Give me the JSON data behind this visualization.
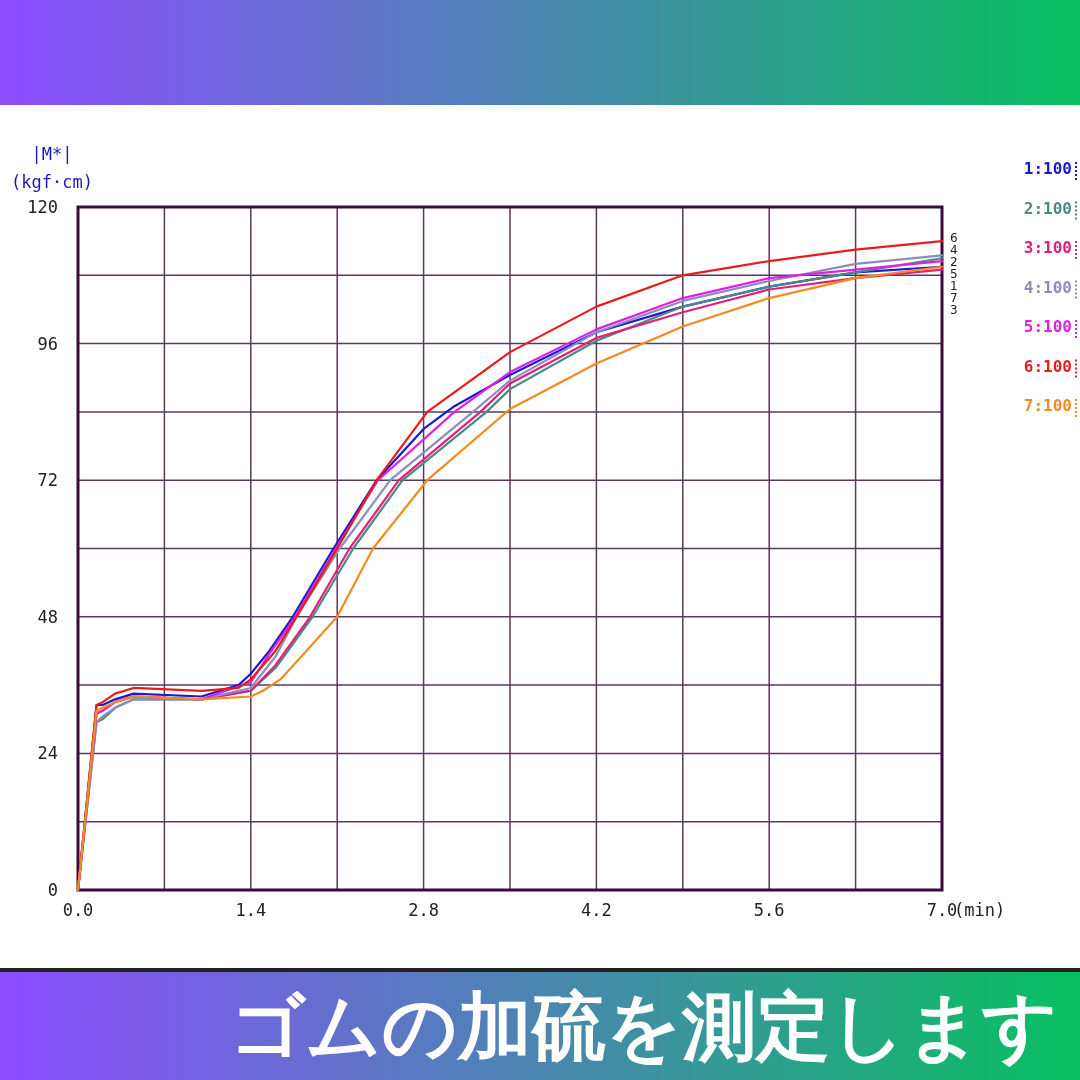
{
  "chart_data": {
    "type": "line",
    "title": "ゴムの加硫を測定します",
    "ylabel": "|M*|\n(kgf·cm)",
    "xlabel": "(min)",
    "xlim": [
      0,
      7
    ],
    "ylim": [
      0,
      120
    ],
    "xticks": [
      {
        "value": 0,
        "label": "0.0"
      },
      {
        "value": 0.7,
        "label": null
      },
      1.4,
      {
        "value": 2.1,
        "label": null
      },
      2.8,
      {
        "value": 3.5,
        "label": null
      },
      4.2,
      {
        "value": 4.9,
        "label": null
      },
      5.6,
      {
        "value": 6.3,
        "label": null
      },
      {
        "value": 7,
        "label": "7.0"
      }
    ],
    "yticks": [
      0,
      {
        "value": 12,
        "label": null
      },
      24,
      {
        "value": 36,
        "label": null
      },
      48,
      {
        "value": 60,
        "label": null
      },
      72,
      {
        "value": 84,
        "label": null
      },
      96,
      {
        "value": 108,
        "label": null
      },
      120
    ],
    "grid": true,
    "legend": "right",
    "marker": "none",
    "line_style": "solid",
    "series": [
      {
        "name": "1:100",
        "color": "#1a1ad0",
        "x": [
          0,
          0.15,
          0.2,
          0.3,
          0.45,
          1.0,
          1.3,
          1.4,
          1.55,
          1.74,
          2.07,
          2.42,
          2.8,
          3.05,
          3.5,
          4.2,
          4.9,
          5.6,
          6.3,
          7.0
        ],
        "values": [
          0,
          32.5,
          32.5,
          33.5,
          34.5,
          34,
          36,
          38,
          42,
          48,
          60,
          72,
          81,
          85,
          90.5,
          98,
          102.5,
          106,
          108.5,
          109.5
        ]
      },
      {
        "name": "2:100",
        "color": "#4a8a80",
        "x": [
          0,
          0.15,
          0.2,
          0.3,
          0.45,
          1.0,
          1.4,
          1.6,
          1.9,
          2.23,
          2.63,
          3.31,
          3.5,
          4.2,
          4.9,
          5.6,
          6.3,
          7.0
        ],
        "values": [
          0,
          29.5,
          30,
          32,
          33.5,
          33.5,
          35,
          39,
          48,
          60,
          72,
          84,
          88,
          96.5,
          102.5,
          106,
          108.5,
          111
        ]
      },
      {
        "name": "3:100",
        "color": "#e0207a",
        "x": [
          0,
          0.15,
          0.2,
          0.3,
          0.45,
          1.0,
          1.4,
          1.6,
          1.88,
          2.2,
          2.6,
          3.26,
          3.5,
          4.2,
          4.9,
          5.6,
          6.3,
          7.0
        ],
        "values": [
          0,
          31,
          31.5,
          33,
          34,
          33.5,
          35,
          39.5,
          48,
          60,
          72,
          84,
          89,
          97,
          101.5,
          105.5,
          107.5,
          109
        ]
      },
      {
        "name": "4:100",
        "color": "#8c8cc0",
        "x": [
          0,
          0.15,
          0.2,
          0.3,
          0.45,
          1.0,
          1.4,
          1.6,
          1.77,
          2.12,
          2.53,
          3.2,
          3.5,
          4.2,
          4.9,
          5.6,
          6.3,
          7.0
        ],
        "values": [
          0,
          29.5,
          30.5,
          32,
          33.5,
          33.5,
          35.5,
          41,
          48,
          60,
          72,
          84,
          89.5,
          98,
          103.5,
          107,
          110,
          111.5
        ]
      },
      {
        "name": "5:100",
        "color": "#e020e0",
        "x": [
          0,
          0.15,
          0.2,
          0.3,
          0.45,
          1.0,
          1.4,
          1.55,
          1.76,
          2.09,
          2.43,
          3.05,
          3.5,
          4.2,
          4.9,
          5.6,
          6.3,
          7.0
        ],
        "values": [
          0,
          31,
          31.5,
          33,
          34,
          33.5,
          36.5,
          41.5,
          48,
          60,
          72,
          84,
          91,
          98.5,
          104,
          107.5,
          109,
          110.5
        ]
      },
      {
        "name": "6:100",
        "color": "#e81c1c",
        "x": [
          0,
          0.15,
          0.2,
          0.3,
          0.45,
          1.0,
          1.3,
          1.4,
          1.6,
          1.77,
          2.1,
          2.42,
          2.83,
          3.5,
          4.2,
          4.9,
          5.6,
          6.3,
          7.0
        ],
        "values": [
          0,
          32.5,
          33,
          34.5,
          35.5,
          35,
          35.5,
          37,
          42,
          48,
          60,
          72,
          84,
          94.5,
          102.5,
          108,
          110.5,
          112.5,
          114
        ]
      },
      {
        "name": "7:100",
        "color": "#f08c20",
        "x": [
          0,
          0.15,
          0.2,
          0.3,
          0.45,
          1.0,
          1.4,
          1.5,
          1.64,
          1.85,
          2.1,
          2.39,
          2.83,
          3.5,
          4.2,
          4.9,
          5.6,
          6.3,
          7.0
        ],
        "values": [
          0,
          31.5,
          32,
          33,
          34,
          33.5,
          34,
          35,
          37,
          42,
          48,
          60,
          72,
          84.5,
          92.5,
          99,
          104,
          107.5,
          109.5
        ]
      }
    ],
    "annotations": [
      "6",
      "4",
      "2",
      "5",
      "1",
      "7",
      "3"
    ]
  }
}
